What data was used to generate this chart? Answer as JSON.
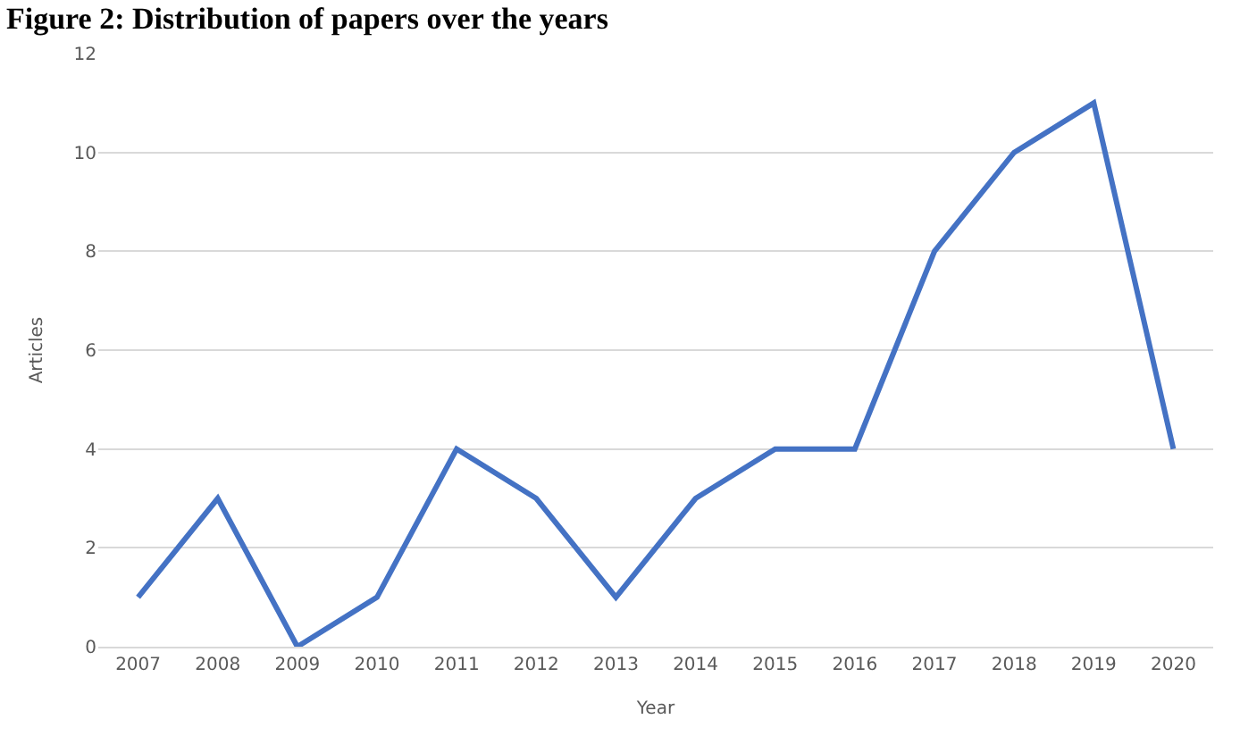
{
  "chart_data": {
    "type": "line",
    "title": "Figure 2: Distribution of papers over the years",
    "xlabel": "Year",
    "ylabel": "Articles",
    "categories": [
      "2007",
      "2008",
      "2009",
      "2010",
      "2011",
      "2012",
      "2013",
      "2014",
      "2015",
      "2016",
      "2017",
      "2018",
      "2019",
      "2020"
    ],
    "series": [
      {
        "color": "#4472c4",
        "values": [
          1,
          3,
          0,
          1,
          4,
          3,
          1,
          3,
          4,
          4,
          8,
          10,
          11,
          4
        ]
      }
    ],
    "ylim": [
      0,
      12
    ],
    "yticks": [
      0,
      2,
      4,
      6,
      8,
      10,
      12
    ],
    "grid": "y",
    "marker": "none",
    "line_style": "solid"
  }
}
